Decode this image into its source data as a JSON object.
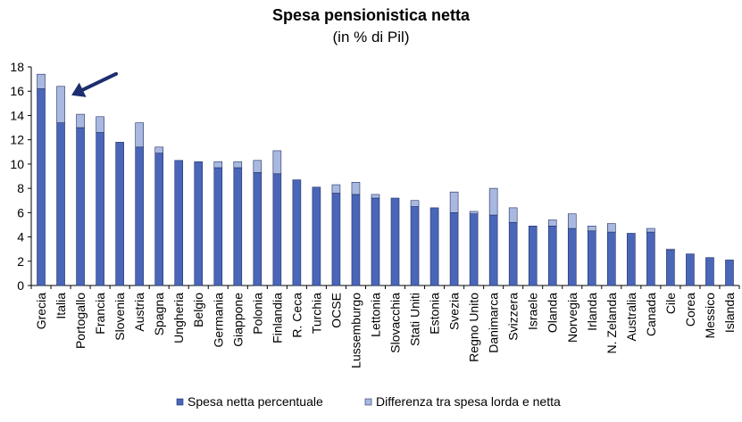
{
  "chart_data": {
    "type": "bar",
    "stacked": true,
    "title": "Spesa pensionistica netta",
    "subtitle": "(in % di Pil)",
    "categories": [
      "Grecia",
      "Italia",
      "Portogallo",
      "Francia",
      "Slovenia",
      "Austria",
      "Spagna",
      "Ungheria",
      "Belgio",
      "Germania",
      "Giappone",
      "Polonia",
      "Finlandia",
      "R. Ceca",
      "Turchia",
      "OCSE",
      "Lussemburgo",
      "Lettonia",
      "Slovacchia",
      "Stati Uniti",
      "Estonia",
      "Svezia",
      "Regno Unito",
      "Danimarca",
      "Svizzera",
      "Israele",
      "Olanda",
      "Norvegia",
      "Irlanda",
      "N. Zelanda",
      "Australia",
      "Canada",
      "Cile",
      "Corea",
      "Messico",
      "Islanda"
    ],
    "series": [
      {
        "name": "Spesa netta percentuale",
        "color": "#4a66b8",
        "values": [
          16.2,
          13.4,
          13.0,
          12.6,
          11.8,
          11.4,
          10.9,
          10.3,
          10.2,
          9.7,
          9.7,
          9.3,
          9.2,
          8.7,
          8.1,
          7.6,
          7.5,
          7.2,
          7.2,
          6.5,
          6.4,
          6.0,
          5.9,
          5.8,
          5.2,
          4.9,
          4.9,
          4.7,
          4.5,
          4.4,
          4.3,
          4.4,
          2.9,
          2.6,
          2.3,
          2.1
        ]
      },
      {
        "name": "Differenza tra spesa lorda e netta",
        "color": "#a9b8df",
        "values": [
          1.2,
          3.0,
          1.1,
          1.3,
          0.0,
          2.0,
          0.5,
          0.0,
          0.0,
          0.5,
          0.5,
          1.0,
          1.9,
          0.0,
          0.0,
          0.7,
          1.0,
          0.3,
          0.0,
          0.5,
          0.0,
          1.7,
          0.2,
          2.2,
          1.2,
          0.0,
          0.5,
          1.2,
          0.4,
          0.7,
          0.0,
          0.3,
          0.1,
          0.0,
          0.0,
          0.0
        ]
      }
    ],
    "ylim": [
      0,
      18
    ],
    "yticks": [
      0,
      2,
      4,
      6,
      8,
      10,
      12,
      14,
      16,
      18
    ],
    "xlabel": "",
    "ylabel": "",
    "grid": false,
    "legend_position": "bottom",
    "annotation": {
      "type": "arrow",
      "target_category": "Italia"
    }
  }
}
